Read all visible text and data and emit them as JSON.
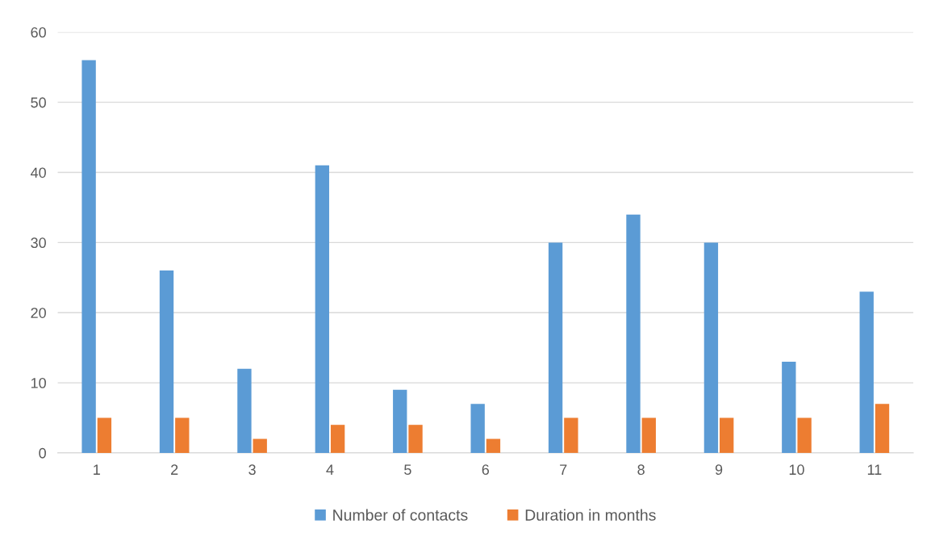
{
  "chart_data": {
    "type": "bar",
    "categories": [
      "1",
      "2",
      "3",
      "4",
      "5",
      "6",
      "7",
      "8",
      "9",
      "10",
      "11"
    ],
    "series": [
      {
        "name": "Number of contacts",
        "color": "#5b9bd5",
        "values": [
          56,
          26,
          12,
          41,
          9,
          7,
          30,
          34,
          30,
          13,
          23
        ]
      },
      {
        "name": "Duration in months",
        "color": "#ed7d31",
        "values": [
          5,
          5,
          2,
          4,
          4,
          2,
          5,
          5,
          5,
          5,
          7
        ]
      }
    ],
    "ylim": [
      0,
      60
    ],
    "yticks": [
      0,
      10,
      20,
      30,
      40,
      50,
      60
    ],
    "grid": "y",
    "legend": "bottom"
  }
}
